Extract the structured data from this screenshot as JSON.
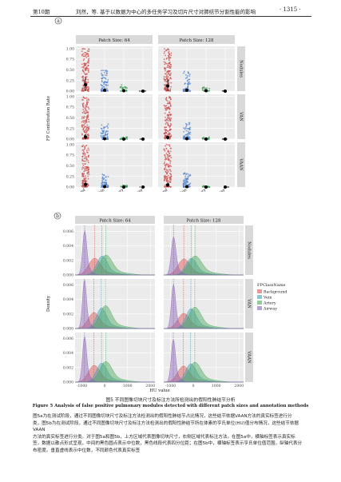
{
  "header": {
    "issue": "第10期",
    "title": "刘然，等. 基于以数据为中心的多任务学习及切片尺寸对肺结节分割性能的影响",
    "page": "· 1315 ·"
  },
  "panel_a_label": "a",
  "panel_b_label": "b",
  "chart_data": [
    {
      "type": "scatter",
      "facet_cols": [
        "Patch Size: 64",
        "Patch Size: 128"
      ],
      "facet_rows": [
        "Nodules",
        "VAN",
        "VAAN"
      ],
      "categories": [
        "Background",
        "Vein",
        "Artery",
        "Airway"
      ],
      "ylabel": "FP Contribution Rate",
      "yticks": [
        "0.00",
        "0.25",
        "0.50",
        "0.75",
        "1.00"
      ],
      "ylim": [
        0,
        1.05
      ],
      "class_colors": [
        "#c94b4b",
        "#4b7fc9",
        "#3a9a55",
        "#2b2b2b"
      ],
      "medians": [
        [
          [
            0.15,
            0.02,
            0.01,
            0.0
          ],
          [
            0.12,
            0.02,
            0.01,
            0.0
          ]
        ],
        [
          [
            0.05,
            0.01,
            0.0,
            0.0
          ],
          [
            0.04,
            0.01,
            0.0,
            0.0
          ]
        ],
        [
          [
            0.06,
            0.01,
            0.0,
            0.0
          ],
          [
            0.05,
            0.01,
            0.0,
            0.0
          ]
        ]
      ],
      "spread_max": [
        [
          [
            1.0,
            0.55,
            0.15,
            0.01
          ],
          [
            1.0,
            0.5,
            0.1,
            0.01
          ]
        ],
        [
          [
            1.0,
            0.35,
            0.05,
            0.0
          ],
          [
            1.0,
            0.4,
            0.05,
            0.0
          ]
        ],
        [
          [
            1.0,
            0.3,
            0.05,
            0.0
          ],
          [
            1.0,
            0.35,
            0.05,
            0.0
          ]
        ]
      ]
    },
    {
      "type": "area",
      "facet_cols": [
        "Patch Size: 64",
        "Patch Size: 128"
      ],
      "facet_rows": [
        "Nodules",
        "VAN",
        "VAAN"
      ],
      "xlabel": "HU value",
      "ylabel": "Density",
      "xticks": [
        "-1000",
        "0",
        "1000",
        "2000"
      ],
      "xlim": [
        -1300,
        2200
      ],
      "yticks": [
        "0.000",
        "0.002",
        "0.004",
        "0.006"
      ],
      "ylim": [
        0,
        0.0068
      ],
      "legend_title": "FPClassName",
      "legend_position": "right",
      "series": [
        {
          "name": "Background",
          "color": "#d9534f",
          "peaks": [
            [
              -450,
              0.0022,
              260
            ],
            [
              -420,
              0.0021,
              260
            ],
            [
              -480,
              0.0021,
              250
            ],
            [
              -430,
              0.002,
              250
            ],
            [
              -470,
              0.0022,
              250
            ],
            [
              -440,
              0.0021,
              250
            ]
          ]
        },
        {
          "name": "Vein",
          "color": "#3fa0b8",
          "peaks": [
            [
              -120,
              0.0025,
              230
            ],
            [
              -100,
              0.0022,
              240
            ],
            [
              -150,
              0.0027,
              220
            ],
            [
              -110,
              0.0026,
              230
            ],
            [
              -140,
              0.0025,
              230
            ],
            [
              -120,
              0.0024,
              230
            ]
          ]
        },
        {
          "name": "Artery",
          "color": "#4aa85a",
          "peaks": [
            [
              50,
              0.0026,
              280
            ],
            [
              70,
              0.0025,
              290
            ],
            [
              30,
              0.003,
              260
            ],
            [
              60,
              0.0028,
              270
            ],
            [
              40,
              0.0027,
              270
            ],
            [
              60,
              0.0026,
              270
            ]
          ]
        },
        {
          "name": "Airway",
          "color": "#8a62b8",
          "peaks": [
            [
              -880,
              0.0058,
              90
            ],
            [
              -870,
              0.005,
              100
            ],
            [
              -890,
              0.0064,
              85
            ],
            [
              -875,
              0.0058,
              90
            ],
            [
              -885,
              0.006,
              88
            ],
            [
              -880,
              0.0056,
              92
            ]
          ]
        }
      ]
    }
  ],
  "caption_cn": "图5 不同图像切块尺寸及标注方法所检测出的假阳性肺结节分析",
  "caption_en": "Figure 5 Analysis of false positive pulmonary modules detected with different patch sizes and annotation methods",
  "body_lines": [
    "图5a为在测试阶段，通过不同图像切块尺寸及标注方法检测出的假阳性肺结节占比情况，这些结节依据VAAN方法的真实标签进行分",
    "类，图5b为在测试阶段，通过不同图像切块尺寸及标注方法检测出的假阳性肺结节所在体素的亨氏单位(HU)值分布情况，这些结节依据VAAN",
    "方法的真实标签进行分类。对于图5a和图5b，上方区域代表图像切块尺寸，右侧区域代表标注方法。在图5a中，横轴标签表示真实标",
    "签，数据以散点形式呈现，中间的黑色圆点表示中位数，黑色线段代表四分位距；在图5b中，横轴标签表示亨氏单位值范围，纵轴代表分",
    "布密度。垂直虚线表示中位数，不同颜色代表真实标签"
  ]
}
